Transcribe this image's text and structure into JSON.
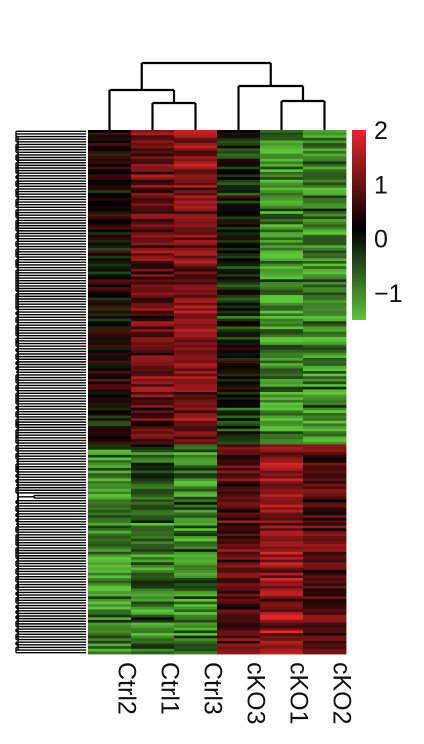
{
  "chart_data": {
    "type": "heatmap",
    "columns": [
      "Ctrl2",
      "Ctrl1",
      "Ctrl3",
      "cKO3",
      "cKO1",
      "cKO2"
    ],
    "column_dendrogram_order": [
      "Ctrl2",
      "Ctrl1",
      "Ctrl3",
      "cKO3",
      "cKO1",
      "cKO2"
    ],
    "row_count": 200,
    "row_clusters": [
      {
        "name": "",
        "rows": 120,
        "pattern": [
          0.15,
          0.9,
          1.1,
          -0.2,
          -1.1,
          -1.0
        ]
      },
      {
        "name": "",
        "rows": 80,
        "pattern": [
          -1.0,
          -0.8,
          -0.9,
          0.7,
          1.2,
          0.6
        ]
      }
    ],
    "legend": {
      "ticks": [
        "2",
        "1",
        "0",
        "−1"
      ],
      "tick_values": [
        2,
        1,
        0,
        -1
      ],
      "range": [
        -1.5,
        2
      ],
      "colors": {
        "low": "#5ec43a",
        "mid": "#000000",
        "high": "#e8262a"
      }
    },
    "xlabel": "",
    "ylabel": "",
    "title": ""
  }
}
